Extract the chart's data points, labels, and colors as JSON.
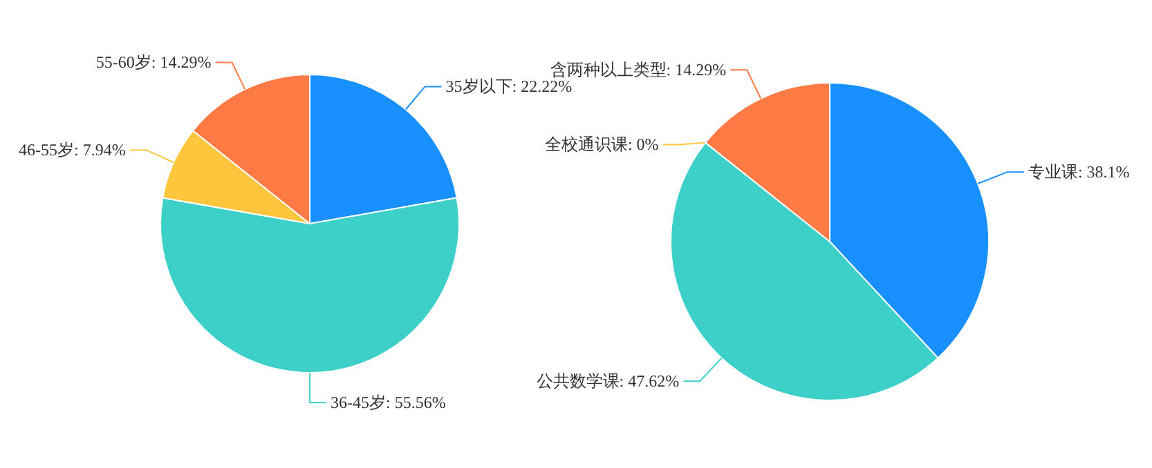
{
  "chart_data": [
    {
      "type": "pie",
      "categories": [
        "35岁以下",
        "36-45岁",
        "46-55岁",
        "55-60岁"
      ],
      "values": [
        22.22,
        55.56,
        7.94,
        14.29
      ],
      "colors": [
        "#1890ff",
        "#3dd0c9",
        "#ffc53d",
        "#ff7a45"
      ],
      "value_labels": [
        ": 22.22%",
        ": 55.56%",
        ": 7.94%",
        ": 14.29%"
      ]
    },
    {
      "type": "pie",
      "categories": [
        "专业课",
        "公共数学课",
        "全校通识课",
        "含两种以上类型"
      ],
      "values": [
        38.1,
        47.62,
        0,
        14.29
      ],
      "colors": [
        "#1890ff",
        "#3dd0c9",
        "#ffc53d",
        "#ff7a45"
      ],
      "value_labels": [
        ": 38.1%",
        ": 47.62%",
        ": 0%",
        ": 14.29%"
      ]
    }
  ]
}
